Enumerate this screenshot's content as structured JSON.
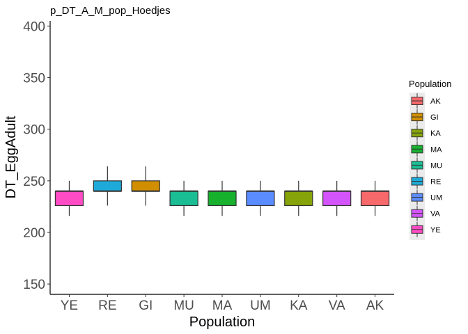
{
  "chart_data": {
    "type": "box",
    "title": "p_DT_A_M_pop_Hoedjes",
    "xlabel": "Population",
    "ylabel": "DT_EggAdult",
    "ylim": [
      140,
      405
    ],
    "yticks": [
      150,
      200,
      250,
      300,
      350,
      400
    ],
    "grid": false,
    "legend": {
      "title": "Population",
      "position": "right"
    },
    "categories": [
      "YE",
      "RE",
      "GI",
      "MU",
      "MA",
      "UM",
      "KA",
      "VA",
      "AK"
    ],
    "boxes": [
      {
        "category": "YE",
        "q1": 226,
        "median": 240,
        "q3": 240,
        "whisker_low": 216,
        "whisker_high": 250,
        "color": "#FF4BC4"
      },
      {
        "category": "RE",
        "q1": 240,
        "median": 240,
        "q3": 250,
        "whisker_low": 226,
        "whisker_high": 264,
        "color": "#1EAAD8"
      },
      {
        "category": "GI",
        "q1": 240,
        "median": 240,
        "q3": 250,
        "whisker_low": 226,
        "whisker_high": 264,
        "color": "#D08E00"
      },
      {
        "category": "MU",
        "q1": 226,
        "median": 240,
        "q3": 240,
        "whisker_low": 216,
        "whisker_high": 250,
        "color": "#1BBD94"
      },
      {
        "category": "MA",
        "q1": 226,
        "median": 240,
        "q3": 240,
        "whisker_low": 216,
        "whisker_high": 250,
        "color": "#17B12E"
      },
      {
        "category": "UM",
        "q1": 226,
        "median": 240,
        "q3": 240,
        "whisker_low": 216,
        "whisker_high": 250,
        "color": "#5A8CFF"
      },
      {
        "category": "KA",
        "q1": 226,
        "median": 240,
        "q3": 240,
        "whisker_low": 216,
        "whisker_high": 250,
        "color": "#86A409"
      },
      {
        "category": "VA",
        "q1": 226,
        "median": 240,
        "q3": 240,
        "whisker_low": 216,
        "whisker_high": 250,
        "color": "#D454FB"
      },
      {
        "category": "AK",
        "q1": 226,
        "median": 240,
        "q3": 240,
        "whisker_low": 216,
        "whisker_high": 250,
        "color": "#F8696B"
      }
    ],
    "legend_items": [
      {
        "label": "AK",
        "color": "#F8696B"
      },
      {
        "label": "GI",
        "color": "#D08E00"
      },
      {
        "label": "KA",
        "color": "#86A409"
      },
      {
        "label": "MA",
        "color": "#17B12E"
      },
      {
        "label": "MU",
        "color": "#1BBD94"
      },
      {
        "label": "RE",
        "color": "#1EAAD8"
      },
      {
        "label": "UM",
        "color": "#5A8CFF"
      },
      {
        "label": "VA",
        "color": "#D454FB"
      },
      {
        "label": "YE",
        "color": "#FF4BC4"
      }
    ]
  }
}
